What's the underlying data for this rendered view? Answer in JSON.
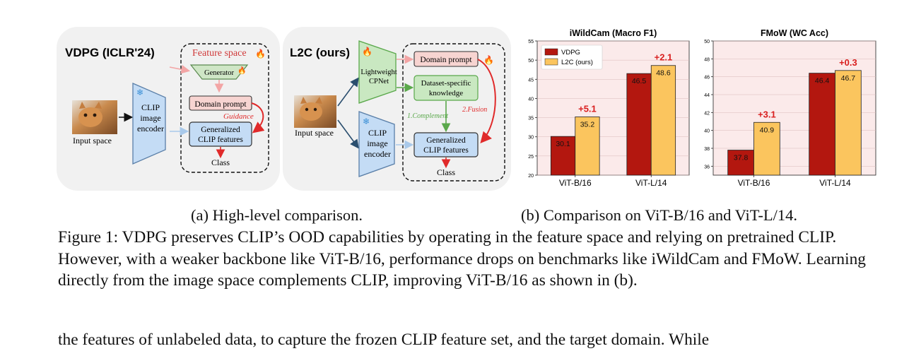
{
  "diagram_a": {
    "vdpg": {
      "title": "VDPG (ICLR'24)",
      "feature_space": "Feature space",
      "generator": "Generator",
      "domain_prompt": "Domain prompt",
      "guidance": "Guidance",
      "generalized_line1": "Generalized",
      "generalized_line2": "CLIP features",
      "class": "Class",
      "clip_line1": "CLIP",
      "clip_line2": "image",
      "clip_line3": "encoder",
      "input_space": "Input space"
    },
    "l2c": {
      "title": "L2C (ours)",
      "cpnet_line1": "Lightweight",
      "cpnet_line2": "CPNet",
      "domain_prompt": "Domain prompt",
      "dataset_line1": "Dataset-specific",
      "dataset_line2": "knowledge",
      "complement": "1.Complement",
      "fusion": "2.Fusion",
      "generalized_line1": "Generalized",
      "generalized_line2": "CLIP features",
      "class": "Class",
      "clip_line1": "CLIP",
      "clip_line2": "image",
      "clip_line3": "encoder",
      "input_space": "Input space"
    }
  },
  "colors": {
    "vdpg_bar": "#b3170f",
    "l2c_bar": "#fbc55e",
    "gain_text": "#d91e1e",
    "chart_bg": "#fbeaea",
    "clip_fill": "#c4dcf5",
    "cpnet_fill": "#c9e8c1",
    "prompt_fill": "#f7d4d1"
  },
  "chart_data": [
    {
      "type": "bar",
      "title": "iWildCam (Macro F1)",
      "categories": [
        "ViT-B/16",
        "ViT-L/14"
      ],
      "series": [
        {
          "name": "VDPG",
          "values": [
            30.1,
            46.5
          ]
        },
        {
          "name": "L2C (ours)",
          "values": [
            35.2,
            48.6
          ]
        }
      ],
      "gains": [
        "+5.1",
        "+2.1"
      ],
      "yticks": [
        "20",
        "25",
        "30",
        "35",
        "40",
        "45",
        "50",
        "55"
      ],
      "ylim": [
        20,
        55
      ],
      "legend": "top-left"
    },
    {
      "type": "bar",
      "title": "FMoW (WC Acc)",
      "categories": [
        "ViT-B/16",
        "ViT-L/14"
      ],
      "series": [
        {
          "name": "VDPG",
          "values": [
            37.8,
            46.4
          ]
        },
        {
          "name": "L2C (ours)",
          "values": [
            40.9,
            46.7
          ]
        }
      ],
      "gains": [
        "+3.1",
        "+0.3"
      ],
      "yticks": [
        "36",
        "38",
        "40",
        "42",
        "44",
        "46",
        "48",
        "50"
      ],
      "ylim": [
        35,
        50
      ]
    }
  ],
  "captions": {
    "a": "(a) High-level comparison.",
    "b": "(b) Comparison on ViT-B/16 and ViT-L/14."
  },
  "figure_caption": "Figure 1: VDPG preserves CLIP’s OOD capabilities by operating in the feature space and relying on pretrained CLIP. However, with a weaker backbone like ViT-B/16, performance drops on benchmarks like iWildCam and FMoW. Learning directly from the image space complements CLIP, improving ViT-B/16 as shown in (b).",
  "trailing_text": "the features of unlabeled data, to capture the frozen CLIP feature set, and the target domain. While"
}
